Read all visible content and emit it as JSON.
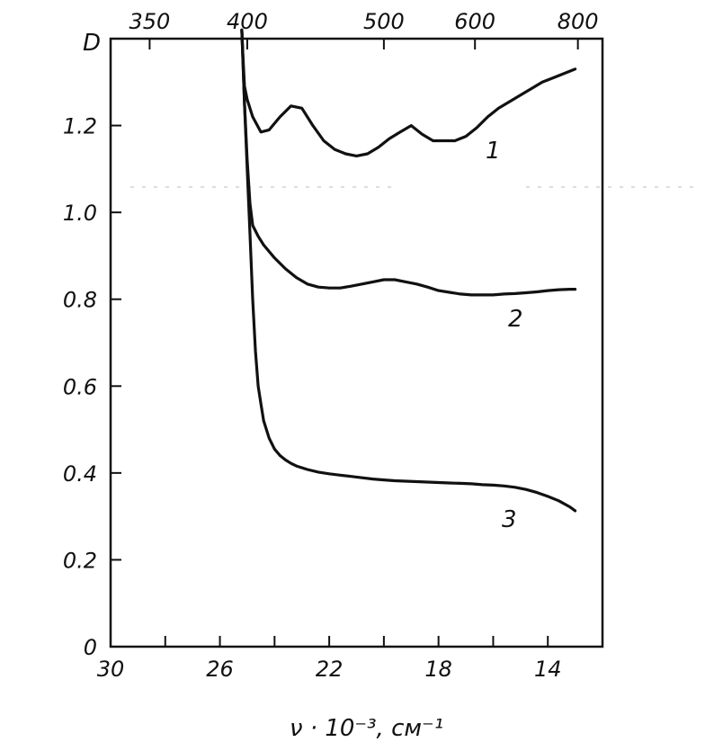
{
  "chart_data": {
    "type": "line",
    "title": "",
    "ylabel": "D",
    "xlabel": "ν · 10⁻³, см⁻¹",
    "x_unit": "ν · 10⁻³, см⁻¹",
    "xlim": [
      30,
      12
    ],
    "ylim": [
      0,
      1.4
    ],
    "x_ticks": [
      30,
      26,
      22,
      18,
      14
    ],
    "y_ticks": [
      0,
      0.2,
      0.4,
      0.6,
      0.8,
      1.0,
      1.2
    ],
    "x_tick_labels": [
      "30",
      "26",
      "22",
      "18",
      "14"
    ],
    "y_tick_labels": [
      "0",
      "0.2",
      "0.4",
      "0.6",
      "0.8",
      "1.0",
      "1.2"
    ],
    "top_axis": {
      "label": "",
      "ticks": [
        350,
        400,
        500,
        600,
        800
      ],
      "tick_labels": [
        "350",
        "400",
        "500",
        "600",
        "800"
      ]
    },
    "grid": false,
    "series": [
      {
        "label": "1",
        "x": [
          25.2,
          25.15,
          25.1,
          25.0,
          24.8,
          24.5,
          24.2,
          23.8,
          23.4,
          23.0,
          22.6,
          22.2,
          21.8,
          21.4,
          21.0,
          20.6,
          20.2,
          19.8,
          19.4,
          19.0,
          18.6,
          18.2,
          17.8,
          17.4,
          17.0,
          16.6,
          16.2,
          15.8,
          15.4,
          15.0,
          14.6,
          14.2,
          13.8,
          13.4,
          13.0
        ],
        "y": [
          1.42,
          1.35,
          1.29,
          1.26,
          1.22,
          1.185,
          1.19,
          1.22,
          1.245,
          1.24,
          1.2,
          1.165,
          1.145,
          1.135,
          1.13,
          1.135,
          1.15,
          1.17,
          1.185,
          1.2,
          1.18,
          1.165,
          1.165,
          1.165,
          1.175,
          1.195,
          1.22,
          1.24,
          1.255,
          1.27,
          1.285,
          1.3,
          1.31,
          1.32,
          1.33
        ]
      },
      {
        "label": "2",
        "x": [
          25.2,
          25.1,
          25.0,
          24.9,
          24.8,
          24.6,
          24.4,
          24.0,
          23.6,
          23.2,
          22.8,
          22.4,
          22.0,
          21.6,
          21.2,
          20.8,
          20.4,
          20.0,
          19.6,
          19.2,
          18.8,
          18.4,
          18.0,
          17.6,
          17.2,
          16.8,
          16.4,
          16.0,
          15.6,
          15.2,
          14.8,
          14.4,
          14.0,
          13.6,
          13.2,
          13.0
        ],
        "y": [
          1.42,
          1.25,
          1.12,
          1.02,
          0.97,
          0.945,
          0.925,
          0.895,
          0.87,
          0.85,
          0.835,
          0.828,
          0.826,
          0.826,
          0.83,
          0.835,
          0.84,
          0.845,
          0.845,
          0.84,
          0.835,
          0.828,
          0.82,
          0.816,
          0.812,
          0.81,
          0.81,
          0.81,
          0.812,
          0.813,
          0.815,
          0.817,
          0.82,
          0.822,
          0.823,
          0.823
        ]
      },
      {
        "label": "3",
        "x": [
          25.2,
          25.1,
          25.0,
          24.9,
          24.8,
          24.7,
          24.6,
          24.5,
          24.4,
          24.2,
          24.0,
          23.8,
          23.6,
          23.4,
          23.2,
          22.8,
          22.4,
          22.0,
          21.6,
          21.2,
          20.8,
          20.4,
          20.0,
          19.6,
          19.2,
          18.8,
          18.4,
          18.0,
          17.6,
          17.2,
          16.8,
          16.4,
          16.0,
          15.6,
          15.2,
          14.8,
          14.4,
          14.0,
          13.6,
          13.2,
          13.0
        ],
        "y": [
          1.42,
          1.25,
          1.1,
          0.95,
          0.8,
          0.68,
          0.6,
          0.56,
          0.52,
          0.48,
          0.455,
          0.44,
          0.43,
          0.422,
          0.416,
          0.408,
          0.402,
          0.398,
          0.395,
          0.392,
          0.389,
          0.386,
          0.384,
          0.382,
          0.381,
          0.38,
          0.379,
          0.378,
          0.377,
          0.376,
          0.375,
          0.373,
          0.372,
          0.37,
          0.367,
          0.362,
          0.355,
          0.346,
          0.336,
          0.322,
          0.313
        ]
      }
    ]
  }
}
